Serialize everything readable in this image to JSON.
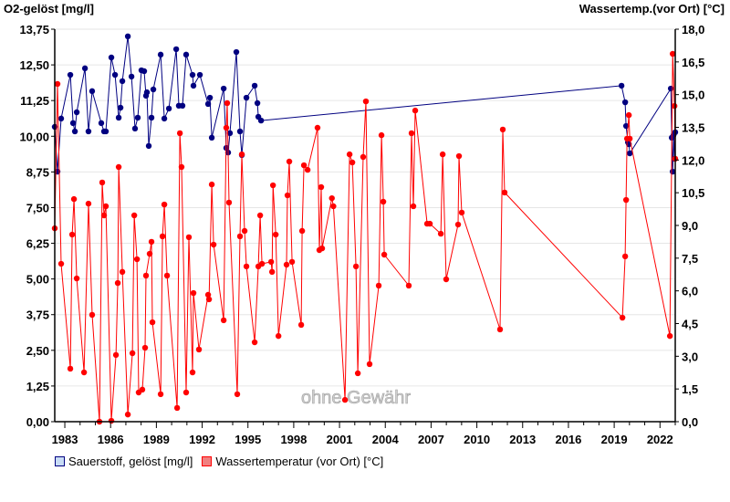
{
  "chart_data": {
    "type": "line",
    "title_left": "O2-gelöst [mg/l]",
    "title_right": "Wassertemp.(vor Ort) [°C]",
    "watermark": "ohne Gewähr",
    "xlim": [
      1982.34,
      2023.0
    ],
    "x_ticks": [
      "1983",
      "1986",
      "1989",
      "1992",
      "1995",
      "1998",
      "2001",
      "2004",
      "2007",
      "2010",
      "2013",
      "2016",
      "2019",
      "2022"
    ],
    "y_left": {
      "range": [
        0,
        13.75
      ],
      "ticks": [
        "0,00",
        "1,25",
        "2,50",
        "3,75",
        "5,00",
        "6,25",
        "7,50",
        "8,75",
        "10,00",
        "11,25",
        "12,50",
        "13,75"
      ]
    },
    "y_right": {
      "range": [
        0,
        18
      ],
      "ticks": [
        "0,0",
        "1,5",
        "3,0",
        "4,5",
        "6,0",
        "7,5",
        "9,0",
        "10,5",
        "12,0",
        "13,5",
        "15,0",
        "16,5",
        "18,0"
      ]
    },
    "grid": true,
    "legend_position": "bottom-left",
    "series": [
      {
        "name": "Sauerstoff, gelöst [mg/l]",
        "axis": "left",
        "color": "#000080",
        "fill": "#c8dcf5",
        "points": [
          [
            1982.34,
            10.33
          ],
          [
            1982.52,
            8.76
          ],
          [
            1982.76,
            10.62
          ],
          [
            1983.36,
            12.15
          ],
          [
            1983.54,
            10.46
          ],
          [
            1983.66,
            10.17
          ],
          [
            1983.78,
            10.84
          ],
          [
            1984.32,
            12.38
          ],
          [
            1984.55,
            10.17
          ],
          [
            1984.79,
            11.58
          ],
          [
            1985.39,
            10.46
          ],
          [
            1985.57,
            10.17
          ],
          [
            1985.69,
            10.17
          ],
          [
            1986.05,
            12.76
          ],
          [
            1986.29,
            12.15
          ],
          [
            1986.53,
            10.65
          ],
          [
            1986.65,
            11.0
          ],
          [
            1986.77,
            11.93
          ],
          [
            1987.13,
            13.5
          ],
          [
            1987.37,
            12.09
          ],
          [
            1987.6,
            10.27
          ],
          [
            1987.78,
            10.65
          ],
          [
            1988.02,
            12.31
          ],
          [
            1988.2,
            12.28
          ],
          [
            1988.32,
            11.42
          ],
          [
            1988.38,
            11.54
          ],
          [
            1988.5,
            9.66
          ],
          [
            1988.68,
            10.65
          ],
          [
            1988.8,
            11.64
          ],
          [
            1989.28,
            12.86
          ],
          [
            1989.52,
            10.62
          ],
          [
            1989.82,
            10.97
          ],
          [
            1990.3,
            13.05
          ],
          [
            1990.47,
            11.07
          ],
          [
            1990.71,
            11.07
          ],
          [
            1990.95,
            12.86
          ],
          [
            1991.37,
            12.15
          ],
          [
            1991.43,
            11.77
          ],
          [
            1991.85,
            12.15
          ],
          [
            1992.39,
            11.13
          ],
          [
            1992.51,
            11.35
          ],
          [
            1992.63,
            9.95
          ],
          [
            1993.41,
            11.67
          ],
          [
            1993.58,
            9.59
          ],
          [
            1993.7,
            9.43
          ],
          [
            1993.82,
            10.11
          ],
          [
            1994.24,
            12.95
          ],
          [
            1994.48,
            10.17
          ],
          [
            1994.6,
            9.34
          ],
          [
            1994.9,
            11.35
          ],
          [
            1995.44,
            11.77
          ],
          [
            1995.62,
            11.16
          ],
          [
            1995.68,
            10.68
          ],
          [
            1995.86,
            10.55
          ],
          [
            2019.48,
            11.77
          ],
          [
            2019.72,
            11.19
          ],
          [
            2019.78,
            10.36
          ],
          [
            2019.9,
            9.79
          ],
          [
            2019.96,
            9.72
          ],
          [
            2020.02,
            9.4
          ],
          [
            2022.71,
            11.67
          ],
          [
            2022.77,
            9.95
          ],
          [
            2022.83,
            8.76
          ],
          [
            2022.89,
            10.04
          ],
          [
            2022.95,
            9.21
          ],
          [
            2023.0,
            10.14
          ]
        ]
      },
      {
        "name": "Wassertemperatur (vor Ort) [°C]",
        "axis": "right",
        "color": "#ff0000",
        "fill": "#f08080",
        "points": [
          [
            1982.34,
            8.87
          ],
          [
            1982.52,
            15.49
          ],
          [
            1982.76,
            7.24
          ],
          [
            1983.36,
            2.43
          ],
          [
            1983.48,
            8.58
          ],
          [
            1983.6,
            10.21
          ],
          [
            1983.78,
            6.57
          ],
          [
            1984.26,
            2.26
          ],
          [
            1984.55,
            10.0
          ],
          [
            1984.79,
            4.9
          ],
          [
            1985.27,
            0.0
          ],
          [
            1985.45,
            10.97
          ],
          [
            1985.57,
            9.46
          ],
          [
            1985.69,
            9.88
          ],
          [
            1986.05,
            0.04
          ],
          [
            1986.35,
            3.06
          ],
          [
            1986.47,
            6.36
          ],
          [
            1986.53,
            11.68
          ],
          [
            1986.77,
            6.87
          ],
          [
            1987.13,
            0.33
          ],
          [
            1987.43,
            3.14
          ],
          [
            1987.55,
            9.46
          ],
          [
            1987.73,
            7.45
          ],
          [
            1987.84,
            1.34
          ],
          [
            1988.08,
            1.47
          ],
          [
            1988.26,
            3.39
          ],
          [
            1988.32,
            6.7
          ],
          [
            1988.56,
            7.7
          ],
          [
            1988.68,
            8.25
          ],
          [
            1988.74,
            4.56
          ],
          [
            1989.28,
            1.26
          ],
          [
            1989.4,
            8.5
          ],
          [
            1989.52,
            9.96
          ],
          [
            1989.7,
            6.7
          ],
          [
            1990.36,
            0.63
          ],
          [
            1990.54,
            13.23
          ],
          [
            1990.65,
            11.68
          ],
          [
            1990.95,
            1.34
          ],
          [
            1991.13,
            8.46
          ],
          [
            1991.37,
            2.26
          ],
          [
            1991.43,
            5.9
          ],
          [
            1991.79,
            3.31
          ],
          [
            1992.39,
            5.82
          ],
          [
            1992.45,
            5.61
          ],
          [
            1992.63,
            10.88
          ],
          [
            1992.75,
            8.12
          ],
          [
            1993.41,
            4.65
          ],
          [
            1993.58,
            13.48
          ],
          [
            1993.64,
            14.61
          ],
          [
            1993.76,
            10.05
          ],
          [
            1994.3,
            1.26
          ],
          [
            1994.48,
            8.5
          ],
          [
            1994.6,
            12.26
          ],
          [
            1994.78,
            8.75
          ],
          [
            1994.9,
            7.12
          ],
          [
            1995.44,
            3.64
          ],
          [
            1995.68,
            7.12
          ],
          [
            1995.8,
            9.46
          ],
          [
            1995.92,
            7.24
          ],
          [
            1996.52,
            7.33
          ],
          [
            1996.58,
            6.87
          ],
          [
            1996.64,
            10.84
          ],
          [
            1996.82,
            8.58
          ],
          [
            1997.0,
            3.93
          ],
          [
            1997.53,
            7.2
          ],
          [
            1997.59,
            10.38
          ],
          [
            1997.71,
            11.93
          ],
          [
            1997.89,
            7.33
          ],
          [
            1998.49,
            4.44
          ],
          [
            1998.55,
            8.75
          ],
          [
            1998.67,
            11.76
          ],
          [
            1998.91,
            11.55
          ],
          [
            1999.56,
            13.48
          ],
          [
            1999.68,
            7.87
          ],
          [
            1999.8,
            10.76
          ],
          [
            1999.86,
            7.95
          ],
          [
            2000.5,
            10.25
          ],
          [
            2000.6,
            9.88
          ],
          [
            2001.36,
            1.0
          ],
          [
            2001.66,
            12.26
          ],
          [
            2001.84,
            11.89
          ],
          [
            2002.08,
            7.12
          ],
          [
            2002.2,
            2.22
          ],
          [
            2002.55,
            12.14
          ],
          [
            2002.73,
            14.69
          ],
          [
            2002.97,
            2.64
          ],
          [
            2003.57,
            6.24
          ],
          [
            2003.75,
            13.14
          ],
          [
            2003.87,
            10.09
          ],
          [
            2003.93,
            7.66
          ],
          [
            2005.54,
            6.24
          ],
          [
            2005.72,
            13.23
          ],
          [
            2005.84,
            9.88
          ],
          [
            2005.96,
            14.27
          ],
          [
            2006.74,
            9.08
          ],
          [
            2006.92,
            9.08
          ],
          [
            2007.64,
            8.62
          ],
          [
            2007.76,
            12.26
          ],
          [
            2007.99,
            6.53
          ],
          [
            2008.77,
            9.04
          ],
          [
            2008.83,
            12.18
          ],
          [
            2009.01,
            9.59
          ],
          [
            2011.52,
            4.23
          ],
          [
            2011.7,
            13.4
          ],
          [
            2011.82,
            10.51
          ],
          [
            2019.54,
            4.77
          ],
          [
            2019.72,
            7.58
          ],
          [
            2019.78,
            10.17
          ],
          [
            2019.84,
            12.98
          ],
          [
            2019.96,
            14.06
          ],
          [
            2020.02,
            12.98
          ],
          [
            2022.65,
            3.93
          ],
          [
            2022.83,
            16.87
          ],
          [
            2022.95,
            14.48
          ],
          [
            2023.0,
            12.06
          ]
        ]
      }
    ]
  }
}
